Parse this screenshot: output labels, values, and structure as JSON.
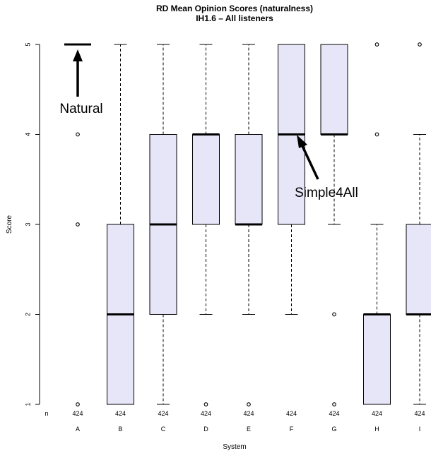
{
  "chart_data": {
    "type": "box",
    "title": "RD Mean Opinion Scores (naturalness)",
    "subtitle": "IH1.6 – All listeners",
    "xlabel": "System",
    "ylabel": "Score",
    "ylim": [
      1,
      5
    ],
    "yticks": [
      "1",
      "2",
      "3",
      "4",
      "5"
    ],
    "n_label": "n",
    "box_fill": "#e6e6f8",
    "categories": [
      "A",
      "B",
      "C",
      "D",
      "E",
      "F",
      "G",
      "H",
      "I"
    ],
    "boxes": [
      {
        "system": "A",
        "n": "424",
        "min": 5,
        "q1": 5,
        "median": 5,
        "q3": 5,
        "max": 5,
        "outliers": [
          4,
          3,
          1
        ]
      },
      {
        "system": "B",
        "n": "424",
        "min": 1,
        "q1": 1,
        "median": 2,
        "q3": 3,
        "max": 5,
        "outliers": []
      },
      {
        "system": "C",
        "n": "424",
        "min": 1,
        "q1": 2,
        "median": 3,
        "q3": 4,
        "max": 5,
        "outliers": []
      },
      {
        "system": "D",
        "n": "424",
        "min": 2,
        "q1": 3,
        "median": 4,
        "q3": 4,
        "max": 5,
        "outliers": [
          1
        ]
      },
      {
        "system": "E",
        "n": "424",
        "min": 2,
        "q1": 3,
        "median": 3,
        "q3": 4,
        "max": 5,
        "outliers": [
          1
        ]
      },
      {
        "system": "F",
        "n": "424",
        "min": 2,
        "q1": 3,
        "median": 4,
        "q3": 5,
        "max": 5,
        "outliers": []
      },
      {
        "system": "G",
        "n": "424",
        "min": 3,
        "q1": 4,
        "median": 4,
        "q3": 5,
        "max": 5,
        "outliers": [
          2,
          1
        ]
      },
      {
        "system": "H",
        "n": "424",
        "min": 1,
        "q1": 1,
        "median": 2,
        "q3": 2,
        "max": 3,
        "outliers": [
          5,
          4
        ]
      },
      {
        "system": "I",
        "n": "424",
        "min": 1,
        "q1": 2,
        "median": 2,
        "q3": 3,
        "max": 4,
        "outliers": [
          5
        ]
      }
    ],
    "annotations": [
      {
        "text": "Natural",
        "points_to_system": "A",
        "points_to_score": 5
      },
      {
        "text": "Simple4All",
        "points_to_system": "F",
        "points_to_score": 4
      }
    ]
  }
}
